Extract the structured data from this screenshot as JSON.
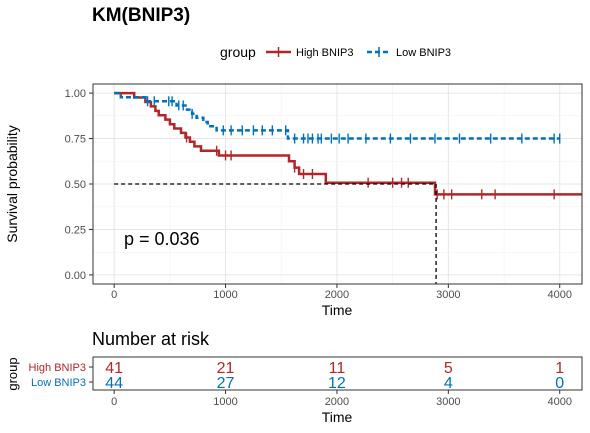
{
  "chart_data": [
    {
      "type": "line",
      "title": "KM(BNIP3)",
      "xlabel": "Time",
      "ylabel": "Survival probability",
      "xlim": [
        -190,
        4200
      ],
      "ylim": [
        -0.05,
        1.05
      ],
      "x_ticks": [
        0,
        1000,
        2000,
        3000,
        4000
      ],
      "x_tick_labels": [
        "0",
        "1000",
        "2000",
        "3000",
        "4000"
      ],
      "y_ticks": [
        0,
        0.25,
        0.5,
        0.75,
        1
      ],
      "y_tick_labels": [
        "0.00",
        "0.25",
        "0.50",
        "0.75",
        "1.00"
      ],
      "grid": true,
      "legend": {
        "title": "group",
        "position": "top",
        "entries": [
          "High BNIP3",
          "Low BNIP3"
        ]
      },
      "annotation": "p = 0.036",
      "median_line": {
        "y": 0.5,
        "x": 2890
      },
      "series": [
        {
          "name": "High BNIP3",
          "color": "#B2262A",
          "line_style": "solid",
          "steps": [
            [
              0,
              1.0
            ],
            [
              180,
              0.976
            ],
            [
              280,
              0.951
            ],
            [
              330,
              0.927
            ],
            [
              370,
              0.902
            ],
            [
              400,
              0.878
            ],
            [
              460,
              0.854
            ],
            [
              500,
              0.829
            ],
            [
              540,
              0.805
            ],
            [
              600,
              0.781
            ],
            [
              640,
              0.756
            ],
            [
              680,
              0.732
            ],
            [
              720,
              0.707
            ],
            [
              780,
              0.683
            ],
            [
              940,
              0.657
            ],
            [
              1050,
              0.657
            ],
            [
              1570,
              0.625
            ],
            [
              1620,
              0.59
            ],
            [
              1660,
              0.555
            ],
            [
              1900,
              0.507
            ],
            [
              2880,
              0.443
            ],
            [
              4200,
              0.443
            ]
          ],
          "censor_x": [
            650,
            920,
            1000,
            1050,
            1620,
            1700,
            1780,
            2280,
            2500,
            2580,
            2640,
            2900,
            2960,
            3030,
            3300,
            3420,
            3950
          ]
        },
        {
          "name": "Low BNIP3",
          "color": "#0072BD",
          "line_style": "dashed",
          "steps": [
            [
              0,
              1.0
            ],
            [
              60,
              0.977
            ],
            [
              280,
              0.955
            ],
            [
              330,
              0.955
            ],
            [
              400,
              0.955
            ],
            [
              560,
              0.932
            ],
            [
              640,
              0.909
            ],
            [
              700,
              0.886
            ],
            [
              740,
              0.864
            ],
            [
              800,
              0.841
            ],
            [
              840,
              0.818
            ],
            [
              920,
              0.795
            ],
            [
              1000,
              0.795
            ],
            [
              1560,
              0.75
            ],
            [
              4000,
              0.75
            ]
          ],
          "censor_x": [
            300,
            360,
            490,
            520,
            580,
            620,
            700,
            980,
            1050,
            1150,
            1250,
            1330,
            1420,
            1540,
            1620,
            1700,
            1740,
            1780,
            1830,
            1860,
            1950,
            2020,
            2100,
            2260,
            2480,
            2660,
            2880,
            3100,
            3380,
            3660,
            3950,
            4000
          ]
        }
      ]
    },
    {
      "type": "table",
      "title": "Number at risk",
      "xlabel": "Time",
      "ylabel": "group",
      "x_ticks": [
        0,
        1000,
        2000,
        3000,
        4000
      ],
      "x_tick_labels": [
        "0",
        "1000",
        "2000",
        "3000",
        "4000"
      ],
      "rows": [
        {
          "name": "High BNIP3",
          "color": "#B2262A",
          "values": [
            41,
            21,
            11,
            5,
            1
          ]
        },
        {
          "name": "Low BNIP3",
          "color": "#0072BD",
          "values": [
            44,
            27,
            12,
            4,
            0
          ]
        }
      ]
    }
  ]
}
